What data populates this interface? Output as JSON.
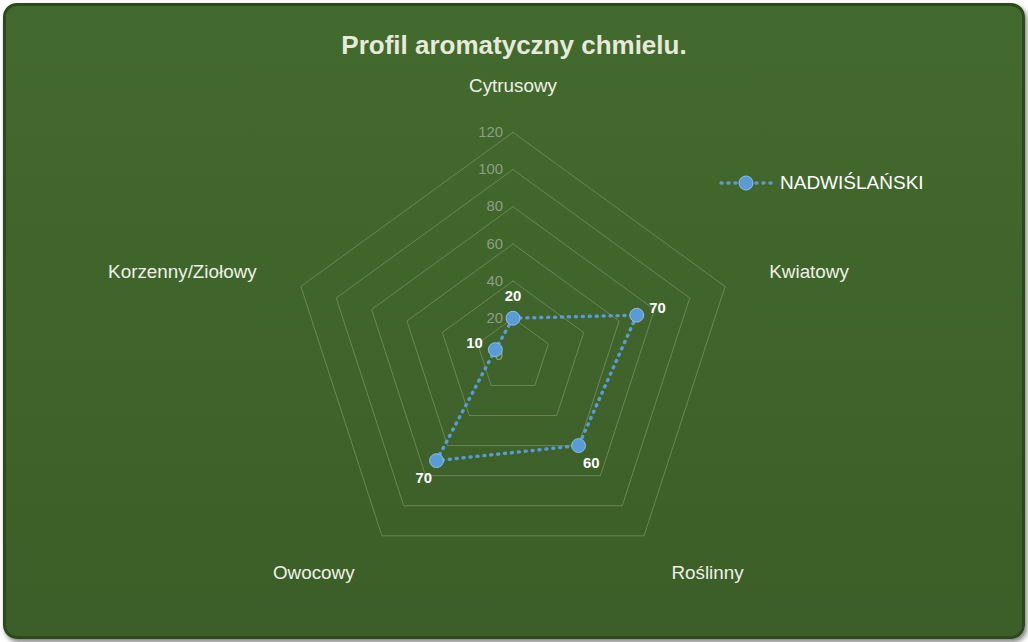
{
  "chart_data": {
    "type": "radar",
    "title": "Profil aromatyczny chmielu.",
    "categories": [
      "Cytrusowy",
      "Kwiatowy",
      "Roślinny",
      "Owocowy",
      "Korzenny/Ziołowy"
    ],
    "series": [
      {
        "name": "NADWIŚLAŃSKI",
        "color": "#5b9bd5",
        "values": [
          20,
          70,
          60,
          70,
          10
        ],
        "marker": "circle",
        "line_style": "dotted"
      }
    ],
    "ylim": [
      0,
      120
    ],
    "yticks": [
      0,
      20,
      40,
      60,
      80,
      100,
      120
    ],
    "grid": true,
    "legend": "right",
    "data_labels": true
  }
}
